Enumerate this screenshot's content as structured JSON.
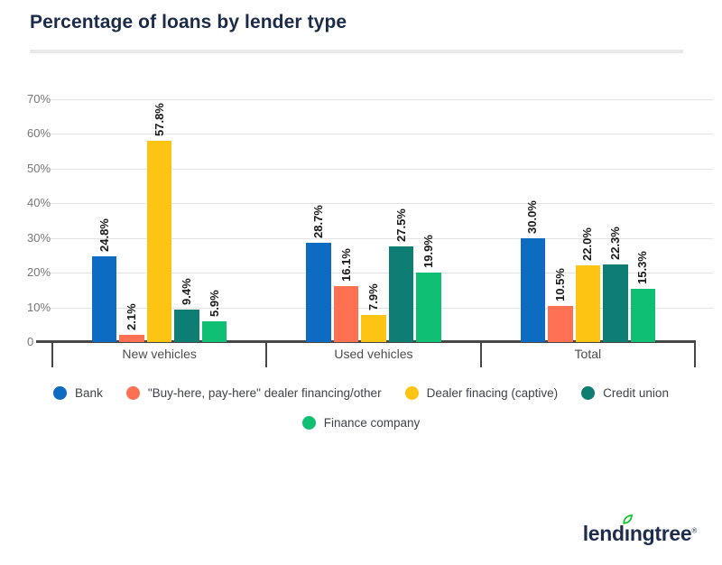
{
  "title": "Percentage of loans by lender type",
  "chart_data": {
    "type": "bar",
    "categories": [
      "New vehicles",
      "Used vehicles",
      "Total"
    ],
    "series": [
      {
        "name": "Bank",
        "color": "#0d6bc1",
        "values": [
          24.8,
          28.7,
          30.0
        ]
      },
      {
        "name": "\"Buy-here, pay-here\" dealer financing/other",
        "color": "#ff7152",
        "values": [
          2.1,
          16.1,
          10.5
        ]
      },
      {
        "name": "Dealer finacing (captive)",
        "color": "#fdc413",
        "values": [
          57.8,
          7.9,
          22.0
        ]
      },
      {
        "name": "Credit union",
        "color": "#0e7d73",
        "values": [
          9.4,
          27.5,
          22.3
        ]
      },
      {
        "name": "Finance company",
        "color": "#0fbf74",
        "values": [
          5.9,
          19.9,
          15.3
        ]
      }
    ],
    "ylim": [
      0,
      70
    ],
    "ytick_step": 10,
    "ytick_labels": [
      "0",
      "10%",
      "20%",
      "30%",
      "40%",
      "50%",
      "60%",
      "70%"
    ],
    "value_label_suffix": "%",
    "grid": true,
    "legend_position": "bottom",
    "bar_label_rotation": -90
  },
  "colors": {
    "title": "#1b2b49",
    "gridline": "#e3e3e3",
    "axis": "#474747",
    "leaf_green": "#00c223"
  },
  "logo": {
    "p1": "lend",
    "p2": "ı",
    "p3": "ngtree",
    "reg": "®",
    "leaf_icon": "leaf-icon"
  }
}
